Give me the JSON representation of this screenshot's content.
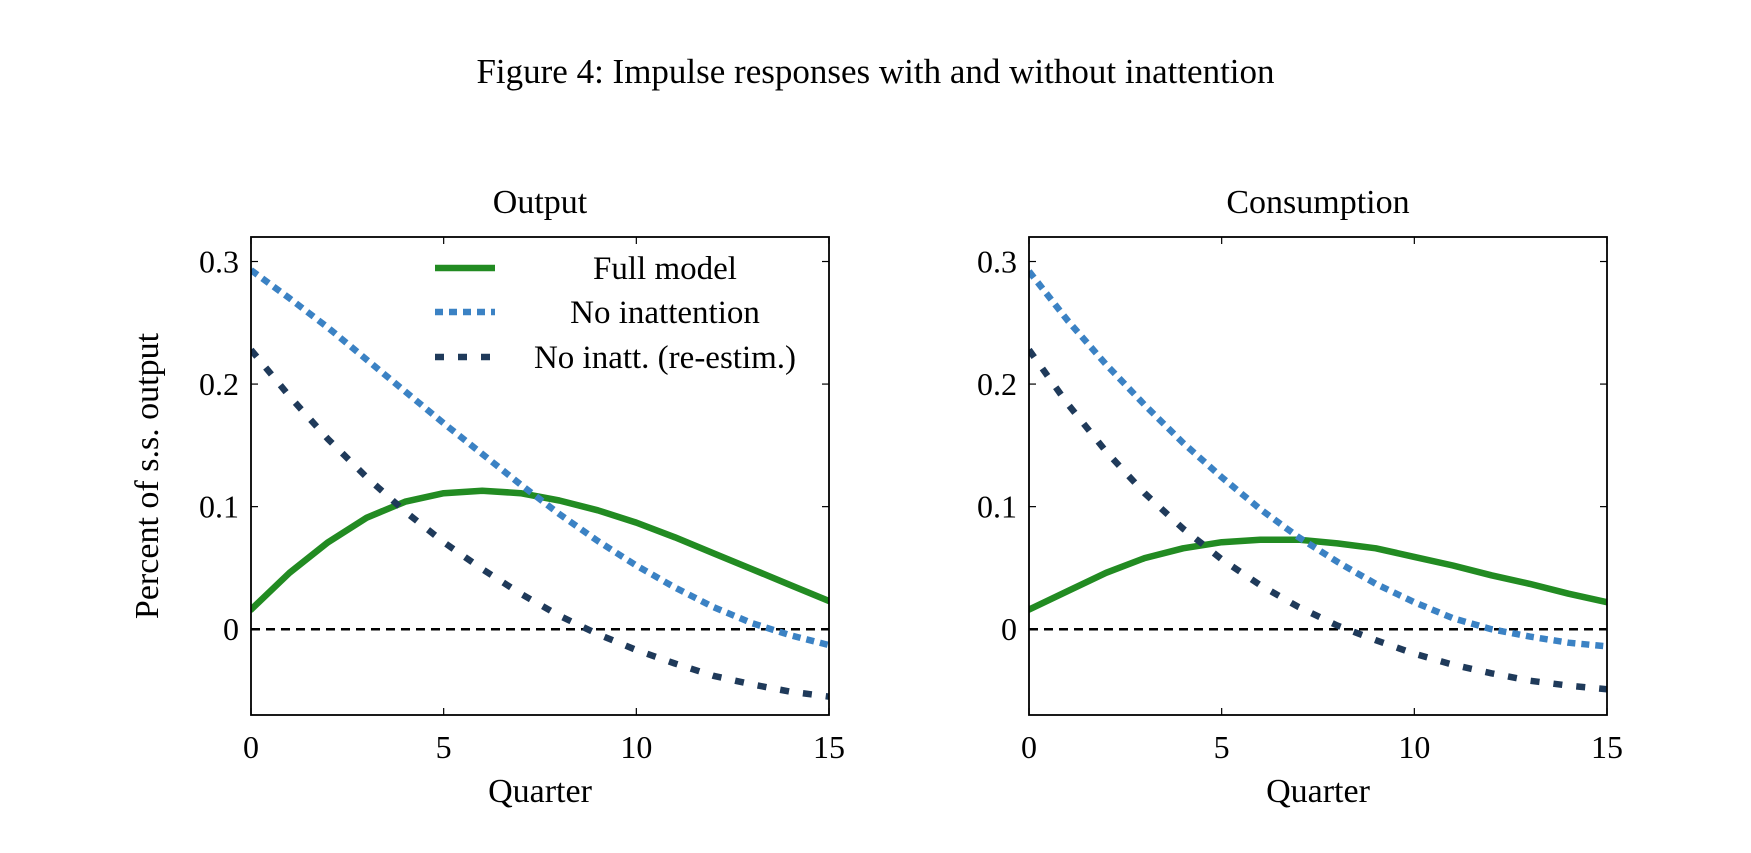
{
  "figure_title": "Figure 4: Impulse responses with and without inattention",
  "colors": {
    "full_model": "#228B22",
    "no_inattention": "#3B82C4",
    "no_inatt_reestim": "#1F3A5A",
    "zero_line": "#000000"
  },
  "chart_data": [
    {
      "type": "line",
      "title": "Output",
      "xlabel": "Quarter",
      "ylabel": "Percent of s.s. output",
      "xlim": [
        0,
        15
      ],
      "ylim": [
        -0.07,
        0.32
      ],
      "xticks": [
        0,
        5,
        10,
        15
      ],
      "yticks": [
        0,
        0.1,
        0.2,
        0.3
      ],
      "ytick_labels": [
        "0",
        "0.1",
        "0.2",
        "0.3"
      ],
      "legend": {
        "position": "top-right",
        "entries": [
          "Full model",
          "No inattention",
          "No inatt. (re-estim.)"
        ]
      },
      "x": [
        0,
        1,
        2,
        3,
        4,
        5,
        6,
        7,
        8,
        9,
        10,
        11,
        12,
        13,
        14,
        15
      ],
      "series": [
        {
          "name": "Full model",
          "style": "solid",
          "color_key": "full_model",
          "values": [
            0.016,
            0.046,
            0.071,
            0.091,
            0.104,
            0.111,
            0.113,
            0.111,
            0.105,
            0.097,
            0.087,
            0.075,
            0.062,
            0.049,
            0.036,
            0.023
          ]
        },
        {
          "name": "No inattention",
          "style": "dotted",
          "color_key": "no_inattention",
          "values": [
            0.293,
            0.27,
            0.246,
            0.22,
            0.194,
            0.168,
            0.143,
            0.118,
            0.094,
            0.072,
            0.052,
            0.034,
            0.018,
            0.005,
            -0.005,
            -0.013
          ]
        },
        {
          "name": "No inatt. (re-estim.)",
          "style": "dashed",
          "color_key": "no_inatt_reestim",
          "values": [
            0.228,
            0.19,
            0.155,
            0.124,
            0.096,
            0.071,
            0.049,
            0.029,
            0.011,
            -0.004,
            -0.017,
            -0.028,
            -0.038,
            -0.045,
            -0.051,
            -0.055
          ]
        }
      ],
      "zero_line": "dashed"
    },
    {
      "type": "line",
      "title": "Consumption",
      "xlabel": "Quarter",
      "ylabel": "",
      "xlim": [
        0,
        15
      ],
      "ylim": [
        -0.07,
        0.32
      ],
      "xticks": [
        0,
        5,
        10,
        15
      ],
      "yticks": [
        0,
        0.1,
        0.2,
        0.3
      ],
      "ytick_labels": [
        "0",
        "0.1",
        "0.2",
        "0.3"
      ],
      "x": [
        0,
        1,
        2,
        3,
        4,
        5,
        6,
        7,
        8,
        9,
        10,
        11,
        12,
        13,
        14,
        15
      ],
      "series": [
        {
          "name": "Full model",
          "style": "solid",
          "color_key": "full_model",
          "values": [
            0.016,
            0.031,
            0.046,
            0.058,
            0.066,
            0.071,
            0.073,
            0.073,
            0.07,
            0.066,
            0.059,
            0.052,
            0.044,
            0.037,
            0.029,
            0.022
          ]
        },
        {
          "name": "No inattention",
          "style": "dotted",
          "color_key": "no_inattention",
          "values": [
            0.292,
            0.252,
            0.216,
            0.183,
            0.152,
            0.124,
            0.098,
            0.075,
            0.055,
            0.037,
            0.022,
            0.009,
            0.0,
            -0.006,
            -0.011,
            -0.014
          ]
        },
        {
          "name": "No inatt. (re-estim.)",
          "style": "dashed",
          "color_key": "no_inatt_reestim",
          "values": [
            0.228,
            0.184,
            0.145,
            0.111,
            0.082,
            0.057,
            0.036,
            0.018,
            0.003,
            -0.009,
            -0.02,
            -0.029,
            -0.036,
            -0.042,
            -0.046,
            -0.049
          ]
        }
      ],
      "zero_line": "dashed"
    }
  ]
}
